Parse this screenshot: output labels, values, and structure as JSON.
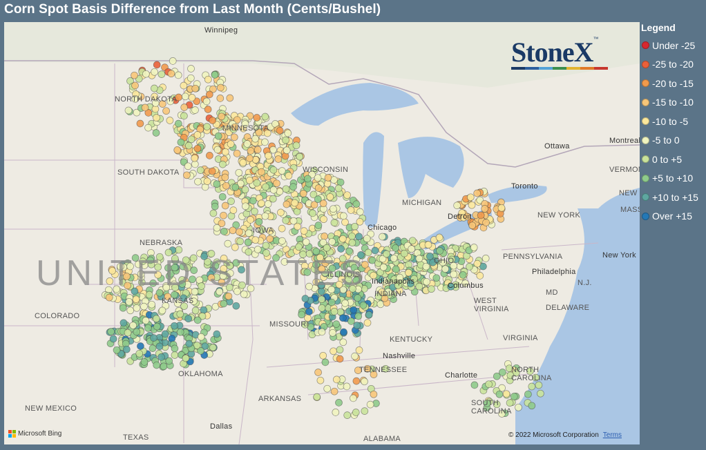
{
  "title": "Corn Spot Basis Difference from Last Month (Cents/Bushel)",
  "legend": {
    "title": "Legend",
    "items": [
      {
        "label": "Under -25",
        "color": "#d7282f"
      },
      {
        "label": "-25 to -20",
        "color": "#e9603a"
      },
      {
        "label": "-20 to -15",
        "color": "#f19a4c"
      },
      {
        "label": "-15 to -10",
        "color": "#f7c679"
      },
      {
        "label": "-10 to -5",
        "color": "#fbe89c"
      },
      {
        "label": "-5 to 0",
        "color": "#eff4bf"
      },
      {
        "label": "0 to +5",
        "color": "#c9e39b"
      },
      {
        "label": "+5 to +10",
        "color": "#8fcb8b"
      },
      {
        "label": "+10 to +15",
        "color": "#5ea7a0"
      },
      {
        "label": "Over +15",
        "color": "#2478b5"
      }
    ]
  },
  "logo": {
    "text": "StoneX",
    "tm": "™",
    "bar_colors": [
      "#1a3a66",
      "#2c5f9e",
      "#54a3d8",
      "#3b8f4e",
      "#e2b430",
      "#e07a28",
      "#c7372e"
    ]
  },
  "map_labels": {
    "states": [
      "NORTH DAKOTA",
      "MINNESOTA",
      "SOUTH DAKOTA",
      "WISCONSIN",
      "MICHIGAN",
      "NEBRASKA",
      "IOWA",
      "COLORADO",
      "KANSAS",
      "MISSOURI",
      "ILLINOIS",
      "INDIANA",
      "OHIO",
      "KENTUCKY",
      "TENNESSEE",
      "OKLAHOMA",
      "ARKANSAS",
      "NEW MEXICO",
      "WEST VIRGINIA",
      "VIRGINIA",
      "NORTH CAROLINA",
      "SOUTH CAROLINA",
      "ALABAMA",
      "PENNSYLVANIA",
      "NEW YORK",
      "MD",
      "DELAWARE",
      "N.J.",
      "VERMONT",
      "NEW HAMP",
      "MASS",
      "TEXAS"
    ],
    "cities": [
      "Winnipeg",
      "Ottawa",
      "Montreal",
      "Toronto",
      "Chicago",
      "Detroit",
      "Columbus",
      "Indianapolis",
      "Nashville",
      "Charlotte",
      "Philadelphia",
      "New York",
      "Dallas"
    ],
    "country": "UNITED STATES"
  },
  "attribution": {
    "provider": "Microsoft Bing",
    "copyright": "© 2022 Microsoft Corporation",
    "terms": "Terms",
    "ms_colors": [
      "#f25022",
      "#7fba00",
      "#00a4ef",
      "#ffb900"
    ]
  }
}
